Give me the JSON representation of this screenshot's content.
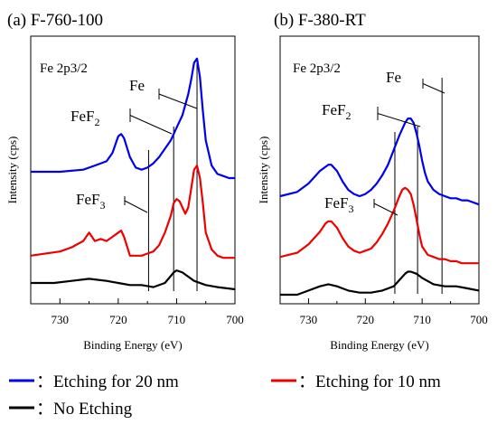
{
  "legend": {
    "items": [
      {
        "symbol": "–",
        "text": "：Etching for 20 nm",
        "color": "#0000ee"
      },
      {
        "symbol": "–",
        "text": "：Etching for 10 nm",
        "color": "#ee0000"
      },
      {
        "symbol": "–",
        "text": "：No Etching",
        "color": "#000000"
      }
    ]
  },
  "chart_data": [
    {
      "type": "line",
      "title": "(a) F-760-100",
      "region_label": "Fe 2p3/2",
      "xlabel": "Binding Energy (eV)",
      "ylabel": "Intensity (cps)",
      "xlim": [
        735,
        700
      ],
      "x_reversed": true,
      "xticks": [
        730,
        720,
        710,
        700
      ],
      "xtick_labels": [
        "730",
        "720",
        "710",
        "700"
      ],
      "reference_lines": [
        {
          "name": "Fe",
          "sub": "",
          "x": 706.5
        },
        {
          "name": "FeF",
          "sub": "2",
          "x": 710.5
        },
        {
          "name": "FeF",
          "sub": "3",
          "x": 714.8
        }
      ],
      "series": [
        {
          "color": "#0000ee",
          "x": [
            735,
            730,
            726,
            724,
            722,
            721,
            720,
            719.5,
            719,
            718,
            717,
            716,
            715,
            714,
            713,
            712,
            711,
            710,
            709,
            708.5,
            708,
            707.5,
            707,
            706.5,
            706,
            705.5,
            705,
            704,
            703,
            702,
            701,
            700
          ],
          "y": [
            0.53,
            0.53,
            0.54,
            0.56,
            0.58,
            0.62,
            0.7,
            0.71,
            0.69,
            0.6,
            0.55,
            0.54,
            0.55,
            0.57,
            0.6,
            0.64,
            0.68,
            0.74,
            0.8,
            0.85,
            0.9,
            0.97,
            1.05,
            1.07,
            0.98,
            0.82,
            0.68,
            0.56,
            0.52,
            0.51,
            0.5,
            0.5
          ]
        },
        {
          "color": "#ee0000",
          "x": [
            735,
            730,
            728,
            726,
            725,
            724,
            723,
            722,
            721,
            720,
            719.5,
            719,
            718,
            717,
            716,
            715,
            714,
            713,
            712,
            711,
            710.5,
            710,
            709.5,
            709,
            708.5,
            708,
            707.5,
            707,
            706.5,
            706,
            705.5,
            705,
            704,
            703,
            702,
            701,
            700
          ],
          "y": [
            0.13,
            0.15,
            0.17,
            0.2,
            0.24,
            0.2,
            0.21,
            0.2,
            0.22,
            0.24,
            0.25,
            0.22,
            0.13,
            0.13,
            0.13,
            0.14,
            0.15,
            0.18,
            0.24,
            0.32,
            0.38,
            0.4,
            0.39,
            0.36,
            0.33,
            0.36,
            0.45,
            0.54,
            0.56,
            0.5,
            0.38,
            0.24,
            0.16,
            0.13,
            0.12,
            0.12,
            0.12
          ]
        },
        {
          "color": "#000000",
          "x": [
            735,
            731,
            728,
            725,
            722,
            720,
            718,
            716,
            714,
            712,
            710.5,
            710,
            709,
            708,
            707,
            705,
            703,
            700
          ],
          "y": [
            0.0,
            0.0,
            0.01,
            0.02,
            0.01,
            0.0,
            -0.01,
            -0.01,
            -0.02,
            0.0,
            0.05,
            0.06,
            0.05,
            0.03,
            0.01,
            -0.01,
            -0.02,
            -0.03
          ]
        }
      ]
    },
    {
      "type": "line",
      "title": "(b) F-380-RT",
      "region_label": "Fe 2p3/2",
      "xlabel": "Binding Energy (eV)",
      "ylabel": "Intensity (cps)",
      "xlim": [
        735,
        700
      ],
      "x_reversed": true,
      "xticks": [
        730,
        720,
        710,
        700
      ],
      "xtick_labels": [
        "730",
        "720",
        "710",
        "700"
      ],
      "reference_lines": [
        {
          "name": "Fe",
          "sub": "",
          "x": 706.5
        },
        {
          "name": "FeF",
          "sub": "2",
          "x": 710.8
        },
        {
          "name": "FeF",
          "sub": "3",
          "x": 714.8
        }
      ],
      "series": [
        {
          "color": "#0000ee",
          "x": [
            735,
            732,
            730,
            728,
            726.5,
            726,
            725,
            724,
            723,
            722,
            721,
            720,
            719,
            718,
            717,
            716,
            715,
            714,
            713,
            712.5,
            712,
            711.5,
            711,
            710.5,
            710,
            709.5,
            709,
            708,
            707,
            706,
            705,
            704,
            703,
            702,
            701,
            700
          ],
          "y": [
            0.47,
            0.49,
            0.53,
            0.59,
            0.62,
            0.62,
            0.59,
            0.54,
            0.5,
            0.48,
            0.47,
            0.48,
            0.5,
            0.53,
            0.57,
            0.62,
            0.69,
            0.76,
            0.82,
            0.84,
            0.84,
            0.82,
            0.77,
            0.71,
            0.64,
            0.58,
            0.54,
            0.5,
            0.48,
            0.47,
            0.46,
            0.46,
            0.45,
            0.45,
            0.44,
            0.43
          ]
        },
        {
          "color": "#ee0000",
          "x": [
            735,
            732,
            730,
            728,
            727,
            726.5,
            726,
            725,
            724,
            723,
            722,
            721,
            720,
            719,
            718,
            717,
            716,
            715,
            714,
            713.5,
            713,
            712.5,
            712,
            711.5,
            711,
            710.5,
            710,
            709,
            708,
            707,
            706,
            705,
            704,
            703,
            702,
            701,
            700
          ],
          "y": [
            0.18,
            0.2,
            0.24,
            0.3,
            0.34,
            0.35,
            0.35,
            0.32,
            0.27,
            0.23,
            0.21,
            0.2,
            0.21,
            0.22,
            0.25,
            0.29,
            0.34,
            0.4,
            0.47,
            0.5,
            0.51,
            0.5,
            0.48,
            0.43,
            0.36,
            0.29,
            0.23,
            0.19,
            0.18,
            0.17,
            0.17,
            0.16,
            0.16,
            0.15,
            0.15,
            0.15,
            0.15
          ]
        },
        {
          "color": "#000000",
          "x": [
            735,
            732,
            730,
            728,
            726.5,
            725,
            723,
            721,
            719,
            717,
            715,
            714,
            713,
            712.5,
            712,
            711,
            710,
            708,
            706,
            704,
            702,
            700
          ],
          "y": [
            0.0,
            0.0,
            0.02,
            0.04,
            0.05,
            0.04,
            0.02,
            0.01,
            0.01,
            0.02,
            0.04,
            0.07,
            0.1,
            0.11,
            0.11,
            0.1,
            0.08,
            0.05,
            0.04,
            0.04,
            0.03,
            0.02
          ]
        }
      ]
    }
  ]
}
